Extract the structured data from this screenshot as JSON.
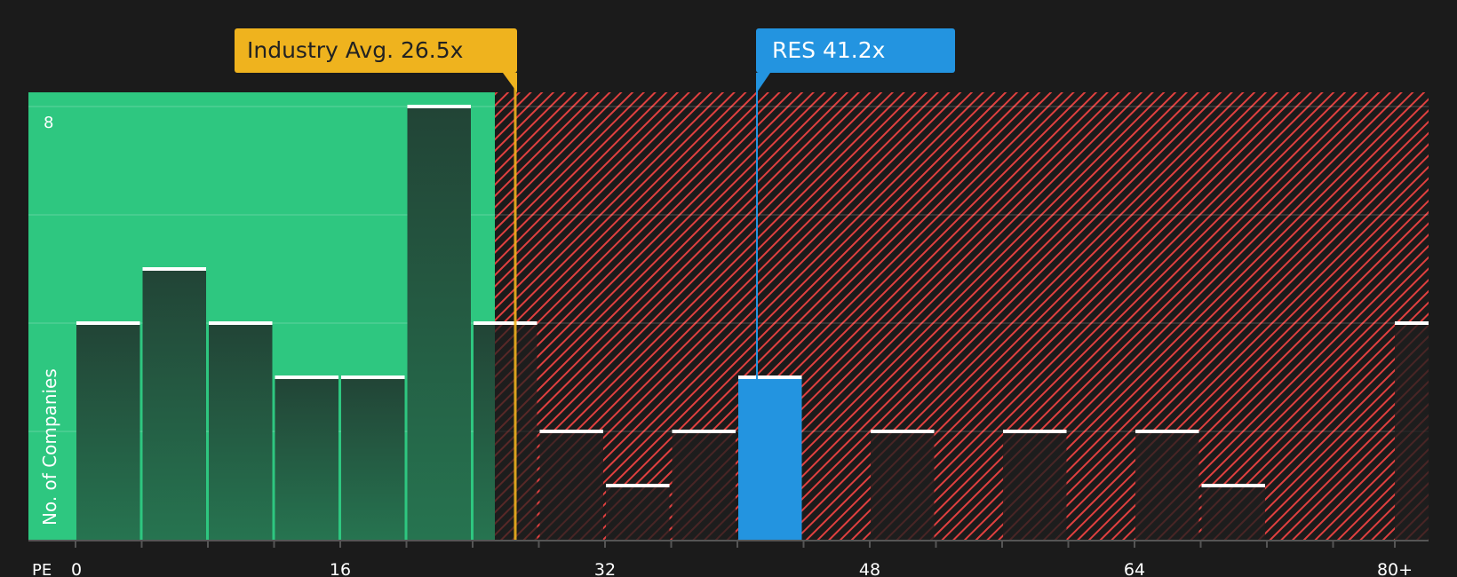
{
  "chart_data": {
    "type": "bar",
    "title": "",
    "xlabel": "PE",
    "ylabel": "No. of Companies",
    "ylim": [
      0,
      8
    ],
    "ytick_labels": [
      "8"
    ],
    "xtick_labels": [
      "0",
      "16",
      "32",
      "48",
      "64",
      "80+"
    ],
    "bin_width": 4,
    "categories": [
      "0-4",
      "4-8",
      "8-12",
      "12-16",
      "16-20",
      "20-24",
      "24-28",
      "28-32",
      "32-36",
      "36-40",
      "40-44",
      "44-48",
      "48-52",
      "52-56",
      "56-60",
      "60-64",
      "64-68",
      "68-72",
      "72-76",
      "76-80",
      "80+"
    ],
    "values": [
      4,
      5,
      4,
      3,
      3,
      8,
      4,
      2,
      1,
      2,
      3,
      0,
      2,
      0,
      2,
      0,
      2,
      1,
      0,
      0,
      4
    ],
    "highlight_bin": "40-44",
    "markers": [
      {
        "name": "Industry Avg.",
        "value": 26.5,
        "label": "Industry Avg. 26.5x",
        "color": "#efb31e"
      },
      {
        "name": "RES",
        "value": 41.2,
        "label": "RES 41.2x",
        "color": "#2394e0"
      }
    ],
    "regions": {
      "undervalued_color": "#2ec780",
      "overvalued_color": "#e0403f"
    },
    "grid": true
  },
  "callouts": {
    "industry": "Industry Avg. 26.5x",
    "company": "RES 41.2x"
  },
  "axis": {
    "x_label": "PE",
    "y_label": "No. of Companies",
    "y_max_label": "8"
  }
}
